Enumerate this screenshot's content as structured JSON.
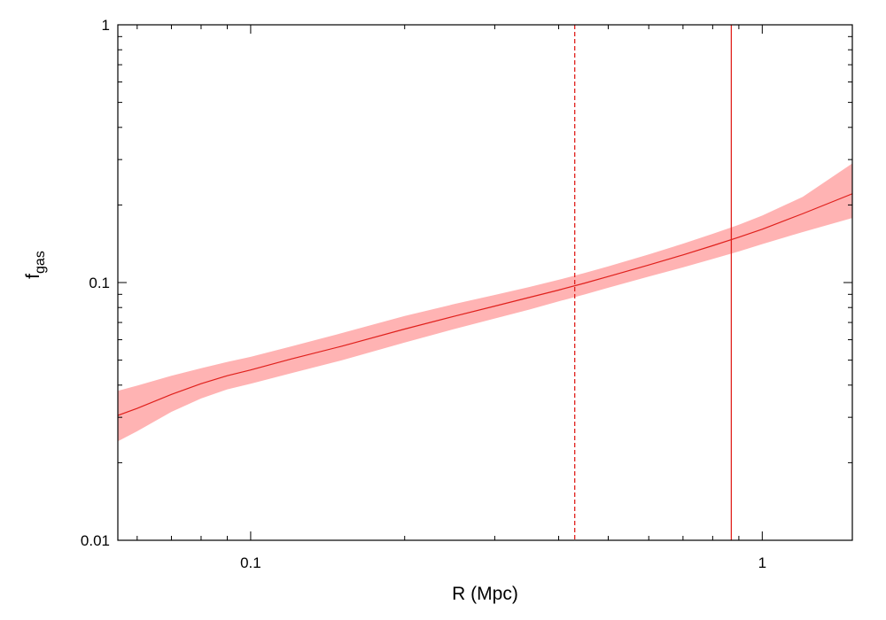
{
  "chart_data": {
    "type": "line",
    "title": "",
    "xlabel": "R (Mpc)",
    "ylabel": {
      "main": "f",
      "subscript": "gas"
    },
    "x_scale": "log",
    "y_scale": "log",
    "xlim": [
      0.055,
      1.5
    ],
    "ylim": [
      0.01,
      1
    ],
    "x_ticks": [
      {
        "value": 0.1,
        "label": "0.1"
      },
      {
        "value": 1,
        "label": "1"
      }
    ],
    "y_ticks": [
      {
        "value": 0.01,
        "label": "0.01"
      },
      {
        "value": 0.1,
        "label": "0.1"
      },
      {
        "value": 1,
        "label": "1"
      }
    ],
    "grid": false,
    "series": [
      {
        "x": [
          0.055,
          0.06,
          0.07,
          0.08,
          0.09,
          0.1,
          0.12,
          0.15,
          0.2,
          0.25,
          0.3,
          0.35,
          0.4,
          0.45,
          0.5,
          0.6,
          0.7,
          0.8,
          0.9,
          1.0,
          1.2,
          1.5
        ],
        "y": [
          0.0305,
          0.0325,
          0.0368,
          0.0405,
          0.0435,
          0.0458,
          0.0505,
          0.0565,
          0.066,
          0.074,
          0.081,
          0.0875,
          0.0935,
          0.0995,
          0.1055,
          0.117,
          0.128,
          0.139,
          0.15,
          0.161,
          0.185,
          0.221
        ],
        "y_lower": [
          0.0242,
          0.0265,
          0.0315,
          0.0355,
          0.0385,
          0.0405,
          0.0445,
          0.0498,
          0.0585,
          0.066,
          0.0725,
          0.0785,
          0.0845,
          0.09,
          0.0955,
          0.1055,
          0.1145,
          0.1235,
          0.132,
          0.141,
          0.157,
          0.178
        ],
        "y_upper": [
          0.038,
          0.0398,
          0.0435,
          0.0465,
          0.0492,
          0.0515,
          0.0565,
          0.0635,
          0.0742,
          0.0825,
          0.0895,
          0.096,
          0.1025,
          0.109,
          0.1155,
          0.1285,
          0.1415,
          0.1545,
          0.1675,
          0.182,
          0.215,
          0.29
        ]
      }
    ],
    "vertical_lines": [
      {
        "x": 0.43,
        "style": "dashed"
      },
      {
        "x": 0.87,
        "style": "solid"
      }
    ],
    "colors": {
      "line": "#e0201c",
      "band": "#ffb3b3",
      "axes": "#000000"
    }
  }
}
